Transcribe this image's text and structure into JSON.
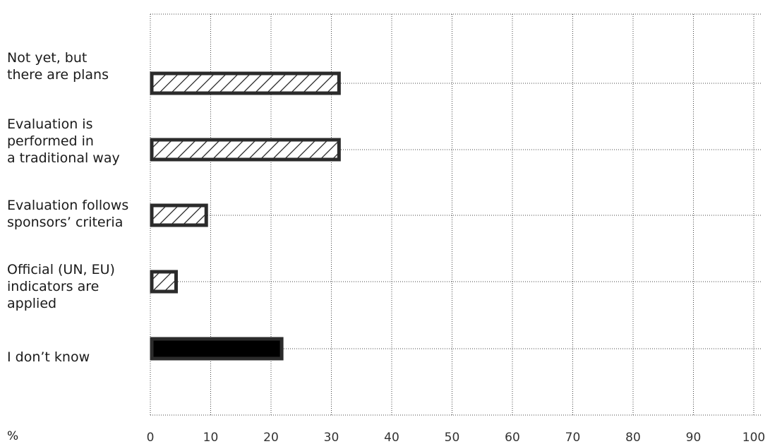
{
  "chart_data": {
    "type": "bar",
    "orientation": "horizontal",
    "categories": [
      "Not yet, but\nthere are plans",
      "Evaluation is\nperformed in\na traditional way",
      "Evaluation follows\nsponsors’ criteria",
      "Official (UN, EU)\nindicators are\napplied",
      "I don’t know"
    ],
    "values": [
      31.5,
      31.5,
      9.5,
      4.5,
      22.0
    ],
    "fills": [
      "hatched",
      "hatched",
      "hatched",
      "hatched",
      "solid"
    ],
    "unit_label": "%",
    "xlim": [
      0,
      100
    ],
    "x_ticks": [
      "0",
      "10",
      "20",
      "30",
      "40",
      "50",
      "60",
      "70",
      "80",
      "90",
      "100"
    ],
    "grid": true,
    "colors": {
      "bar_outline": "#2b2b2b",
      "bar_solid": "#000000",
      "hatch": "#1a1a1a",
      "grid": "#444444",
      "tick_text": "#333333"
    }
  }
}
